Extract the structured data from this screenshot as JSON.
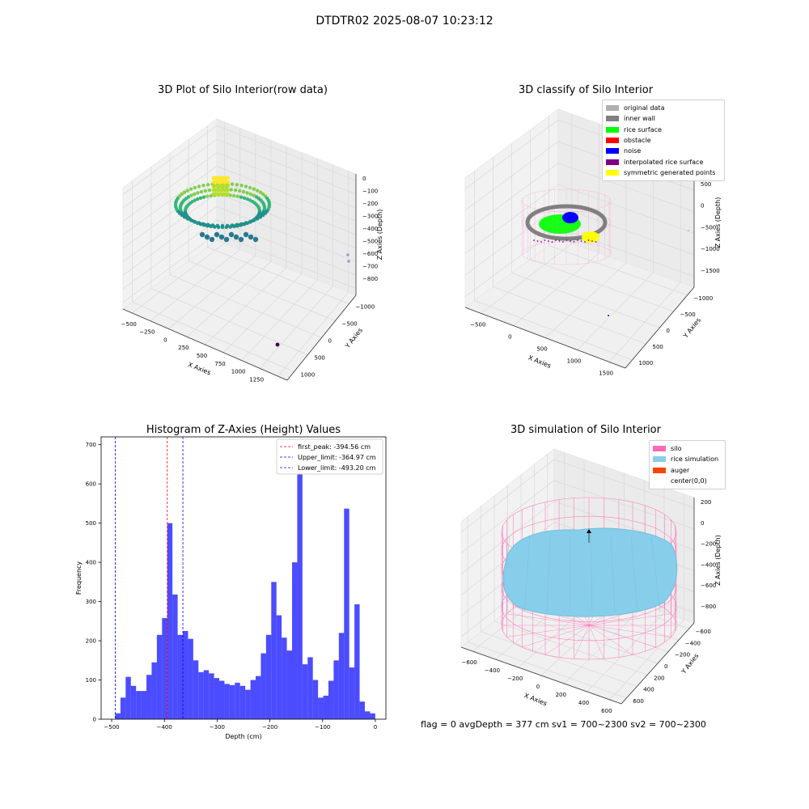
{
  "figure": {
    "suptitle": "DTDTR02 2025-08-07 10:23:12",
    "status_text": "flag = 0     avgDepth = 377 cm  sv1 = 700~2300  sv2 = 700~2300"
  },
  "panels": {
    "raw": {
      "title": "3D Plot of Silo Interior(row data)",
      "x_label": "X Axies",
      "y_label": "Y Axies",
      "z_label": "Z Axies (Depth)",
      "x_ticks": [
        "−500",
        "−250",
        "0",
        "250",
        "500",
        "750",
        "1000",
        "1250",
        "1500"
      ],
      "y_ticks": [
        "−1000",
        "−500",
        "0",
        "500",
        "1000"
      ],
      "z_ticks": [
        "0",
        "−100",
        "−200",
        "−300",
        "−400",
        "−500",
        "−600",
        "−700",
        "−800"
      ]
    },
    "classify": {
      "title": "3D classify of Silo Interior",
      "x_label": "X Axies",
      "y_label": "Y Axies",
      "z_label": "Z Axies (Depth)",
      "x_ticks": [
        "−500",
        "0",
        "500",
        "1000",
        "1500"
      ],
      "y_ticks": [
        "−1000",
        "−500",
        "0",
        "500",
        "1000"
      ],
      "z_ticks": [
        "1000",
        "500",
        "0",
        "−500",
        "−1000",
        "−1500"
      ],
      "legend": [
        {
          "label": "original data",
          "color": "#b0b0b0"
        },
        {
          "label": "inner wall",
          "color": "#808080"
        },
        {
          "label": "rice surface",
          "color": "#00ff00"
        },
        {
          "label": "obstacle",
          "color": "#ff0000"
        },
        {
          "label": "noise",
          "color": "#0000ff"
        },
        {
          "label": "interpolated rice surface",
          "color": "#800080"
        },
        {
          "label": "symmetric generated points",
          "color": "#ffff00"
        }
      ]
    },
    "simulation": {
      "title": "3D simulation of Silo Interior",
      "x_label": "X Axies",
      "y_label": "Y Axies",
      "z_label": "Z Axies (Depth)",
      "x_ticks": [
        "−600",
        "−400",
        "−200",
        "0",
        "200",
        "400",
        "600"
      ],
      "y_ticks": [
        "−600",
        "−400",
        "−200",
        "0",
        "200",
        "400",
        "600"
      ],
      "z_ticks": [
        "200",
        "0",
        "−200",
        "−400",
        "−600",
        "−800"
      ],
      "legend": [
        {
          "label": "silo",
          "color": "#ff69b4"
        },
        {
          "label": "rice simulation",
          "color": "#87ceeb"
        },
        {
          "label": "auger",
          "color": "#ff4500"
        },
        {
          "label": "center(0,0)",
          "color": "#ffffff"
        }
      ]
    }
  },
  "chart_data": {
    "type": "bar",
    "title": "Histogram of Z-Axies (Height) Values",
    "xlabel": "Depth (cm)",
    "ylabel": "Frequency",
    "xlim": [
      -520,
      20
    ],
    "ylim": [
      0,
      720
    ],
    "x_ticks": [
      -500,
      -400,
      -300,
      -200,
      -100,
      0
    ],
    "x_tick_labels": [
      "−500",
      "−400",
      "−300",
      "−200",
      "−100",
      "0"
    ],
    "y_ticks": [
      0,
      100,
      200,
      300,
      400,
      500,
      600,
      700
    ],
    "bar_color": "#0000ff",
    "bin_start": -493.2,
    "bin_width": 9.86,
    "values": [
      15,
      55,
      108,
      85,
      72,
      72,
      113,
      145,
      215,
      258,
      500,
      318,
      215,
      225,
      205,
      150,
      120,
      125,
      117,
      105,
      98,
      90,
      87,
      93,
      85,
      75,
      100,
      110,
      168,
      215,
      350,
      265,
      208,
      175,
      400,
      680,
      140,
      158,
      100,
      55,
      60,
      98,
      150,
      220,
      537,
      132,
      293,
      45,
      20,
      15
    ],
    "vlines": [
      {
        "label": "first_peak: -394.56 cm",
        "x": -394.56,
        "color": "#ff0000"
      },
      {
        "label": "Upper_limit: -364.97 cm",
        "x": -364.97,
        "color": "#0000ff"
      },
      {
        "label": "Lower_limit: -493.20 cm",
        "x": -493.2,
        "color": "#0000ff"
      }
    ],
    "legend_position": "top-right"
  }
}
